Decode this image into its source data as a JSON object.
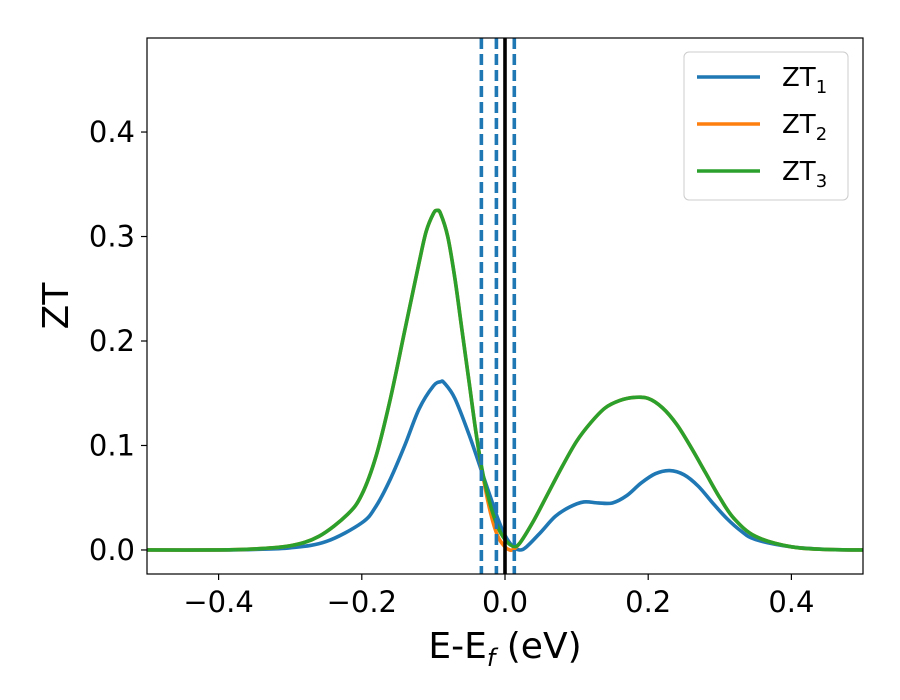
{
  "chart_data": {
    "type": "line",
    "xlabel": {
      "main": "E-E",
      "sub": "f",
      "tail": " (eV)"
    },
    "ylabel": "ZT",
    "xlim": [
      -0.5,
      0.5
    ],
    "ylim": [
      -0.023,
      0.49
    ],
    "xticks": [
      -0.4,
      -0.2,
      0.0,
      0.2,
      0.4
    ],
    "xtick_labels": [
      "−0.4",
      "−0.2",
      "0.0",
      "0.2",
      "0.4"
    ],
    "yticks": [
      0.0,
      0.1,
      0.2,
      0.3,
      0.4
    ],
    "ytick_labels": [
      "0.0",
      "0.1",
      "0.2",
      "0.3",
      "0.4"
    ],
    "grid": false,
    "legend_position": "top-right",
    "vlines": [
      {
        "x": -0.033,
        "style": "dashed",
        "color": "#1f77b4"
      },
      {
        "x": -0.012,
        "style": "dashed",
        "color": "#1f77b4"
      },
      {
        "x": 0.0,
        "style": "solid",
        "color": "#000000"
      },
      {
        "x": 0.013,
        "style": "dashed",
        "color": "#1f77b4"
      }
    ],
    "series": [
      {
        "name": "ZT",
        "name_sub": "1",
        "color": "#1f77b4",
        "x": [
          -0.5,
          -0.4,
          -0.35,
          -0.3,
          -0.25,
          -0.2,
          -0.18,
          -0.16,
          -0.14,
          -0.12,
          -0.1,
          -0.09,
          -0.085,
          -0.07,
          -0.05,
          -0.03,
          -0.02,
          -0.01,
          0.0,
          0.01,
          0.02,
          0.03,
          0.05,
          0.07,
          0.09,
          0.11,
          0.13,
          0.15,
          0.17,
          0.19,
          0.21,
          0.23,
          0.25,
          0.27,
          0.29,
          0.31,
          0.33,
          0.35,
          0.4,
          0.45,
          0.5
        ],
        "y": [
          0.0,
          0.0,
          0.0005,
          0.002,
          0.008,
          0.026,
          0.042,
          0.068,
          0.1,
          0.135,
          0.157,
          0.161,
          0.16,
          0.145,
          0.11,
          0.07,
          0.05,
          0.03,
          0.014,
          0.004,
          0.0,
          0.003,
          0.017,
          0.032,
          0.041,
          0.046,
          0.045,
          0.045,
          0.052,
          0.064,
          0.073,
          0.076,
          0.072,
          0.061,
          0.045,
          0.03,
          0.018,
          0.01,
          0.003,
          0.0005,
          0.0
        ]
      },
      {
        "name": "ZT",
        "name_sub": "2",
        "color": "#ff7f0e",
        "x": [
          -0.5,
          -0.4,
          -0.35,
          -0.3,
          -0.26,
          -0.22,
          -0.2,
          -0.18,
          -0.16,
          -0.14,
          -0.12,
          -0.11,
          -0.1,
          -0.095,
          -0.09,
          -0.08,
          -0.07,
          -0.06,
          -0.05,
          -0.04,
          -0.03,
          -0.02,
          -0.01,
          0.0,
          0.005,
          0.01,
          0.02,
          0.04,
          0.06,
          0.08,
          0.1,
          0.12,
          0.14,
          0.16,
          0.18,
          0.2,
          0.22,
          0.24,
          0.26,
          0.28,
          0.3,
          0.32,
          0.35,
          0.4,
          0.45,
          0.5
        ],
        "y": [
          0.0,
          0.0,
          0.001,
          0.004,
          0.013,
          0.034,
          0.053,
          0.09,
          0.145,
          0.21,
          0.275,
          0.305,
          0.322,
          0.325,
          0.322,
          0.3,
          0.26,
          0.21,
          0.16,
          0.11,
          0.068,
          0.035,
          0.013,
          0.003,
          0.0005,
          0.0,
          0.006,
          0.028,
          0.054,
          0.08,
          0.104,
          0.122,
          0.136,
          0.143,
          0.146,
          0.145,
          0.136,
          0.12,
          0.098,
          0.074,
          0.05,
          0.03,
          0.013,
          0.003,
          0.0005,
          0.0
        ]
      },
      {
        "name": "ZT",
        "name_sub": "3",
        "color": "#2ca02c",
        "x": [
          -0.5,
          -0.4,
          -0.35,
          -0.3,
          -0.26,
          -0.22,
          -0.2,
          -0.18,
          -0.16,
          -0.14,
          -0.12,
          -0.11,
          -0.1,
          -0.095,
          -0.09,
          -0.08,
          -0.07,
          -0.06,
          -0.05,
          -0.04,
          -0.03,
          -0.02,
          -0.01,
          0.0,
          0.01,
          0.02,
          0.04,
          0.06,
          0.08,
          0.1,
          0.12,
          0.14,
          0.16,
          0.18,
          0.2,
          0.22,
          0.24,
          0.26,
          0.28,
          0.3,
          0.32,
          0.35,
          0.4,
          0.45,
          0.5
        ],
        "y": [
          0.0,
          0.0,
          0.001,
          0.004,
          0.013,
          0.034,
          0.053,
          0.09,
          0.145,
          0.21,
          0.275,
          0.305,
          0.322,
          0.325,
          0.322,
          0.3,
          0.26,
          0.21,
          0.16,
          0.11,
          0.07,
          0.042,
          0.022,
          0.01,
          0.004,
          0.006,
          0.028,
          0.054,
          0.08,
          0.104,
          0.122,
          0.136,
          0.143,
          0.146,
          0.145,
          0.136,
          0.12,
          0.098,
          0.074,
          0.05,
          0.03,
          0.013,
          0.003,
          0.0005,
          0.0
        ]
      }
    ]
  }
}
